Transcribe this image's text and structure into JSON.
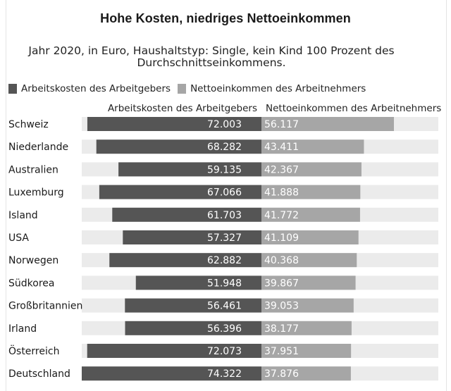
{
  "title": "Hohe Kosten, niedriges Nettoeinkommen",
  "subtitle": "Jahr 2020, in Euro, Haushaltstyp: Single, kein Kind 100 Prozent des Durchschnittseinkommens.",
  "legend": {
    "items": [
      {
        "label": "Arbeitskosten des Arbeitgebers",
        "color": "#555555"
      },
      {
        "label": "Nettoeinkommen des Arbeitnehmers",
        "color": "#a6a6a6"
      }
    ]
  },
  "headers": {
    "left": "Arbeitskosten des Arbeitgebers",
    "right": "Nettoeinkommen des Arbeitnehmers"
  },
  "colors": {
    "dark_bar": "#555555",
    "light_bar": "#a6a6a6",
    "track": "#ebebeb"
  },
  "chart_data": {
    "type": "bar",
    "orientation": "horizontal-diverging",
    "title": "Hohe Kosten, niedriges Nettoeinkommen",
    "subtitle": "Jahr 2020, in Euro, Haushaltstyp: Single, kein Kind 100 Prozent des Durchschnittseinkommens.",
    "categories": [
      "Schweiz",
      "Niederlande",
      "Australien",
      "Luxemburg",
      "Island",
      "USA",
      "Norwegen",
      "Südkorea",
      "Großbritannien",
      "Irland",
      "Österreich",
      "Deutschland"
    ],
    "series": [
      {
        "name": "Arbeitskosten des Arbeitgebers",
        "values": [
          72003,
          68282,
          59135,
          67066,
          61703,
          57327,
          62882,
          51948,
          56461,
          56396,
          72073,
          74322
        ],
        "labels": [
          "72.003",
          "68.282",
          "59.135",
          "67.066",
          "61.703",
          "57.327",
          "62.882",
          "51.948",
          "56.461",
          "56.396",
          "72.073",
          "74.322"
        ]
      },
      {
        "name": "Nettoeinkommen des Arbeitnehmers",
        "values": [
          56117,
          43411,
          42367,
          41888,
          41772,
          41109,
          40368,
          39867,
          39053,
          38177,
          37951,
          37876
        ],
        "labels": [
          "56.117",
          "43.411",
          "42.367",
          "41.888",
          "41.772",
          "41.109",
          "40.368",
          "39.867",
          "39.053",
          "38.177",
          "37.951",
          "37.876"
        ]
      }
    ],
    "grid": false,
    "legend_position": "top-left"
  }
}
